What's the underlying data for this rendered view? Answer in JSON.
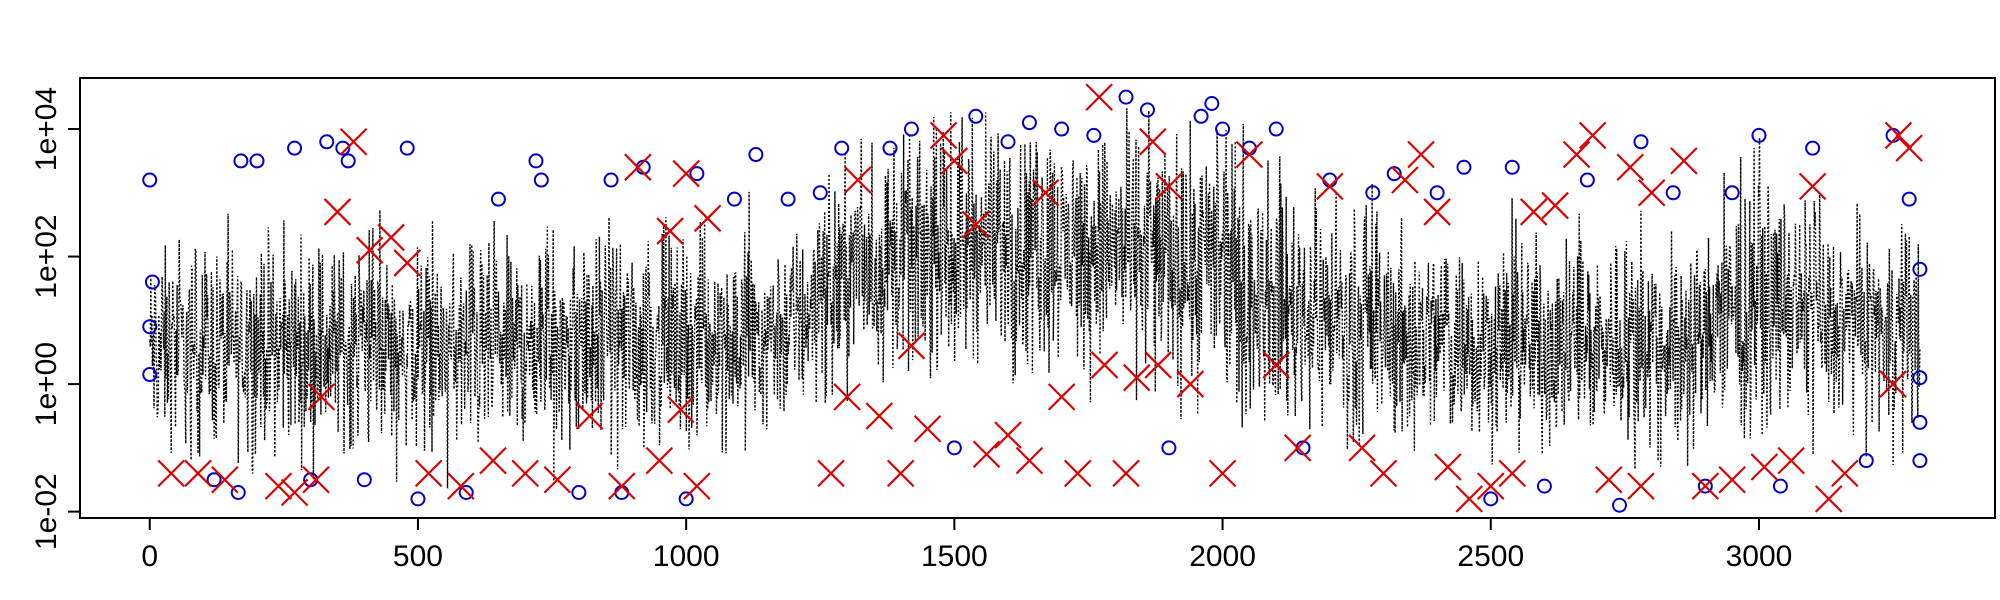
{
  "chart_data": {
    "type": "scatter",
    "title": "",
    "xlabel": "",
    "ylabel": "",
    "xlim": [
      -130,
      3440
    ],
    "ylim_log10": [
      -2.1,
      4.8
    ],
    "y_scale": "log",
    "grid": false,
    "legend": "none",
    "x_ticks": [
      0,
      500,
      1000,
      1500,
      2000,
      2500,
      3000
    ],
    "x_tick_labels": [
      "0",
      "500",
      "1000",
      "1500",
      "2000",
      "2500",
      "3000"
    ],
    "y_ticks_log10": [
      -2,
      0,
      2,
      4
    ],
    "y_tick_labels": [
      "1e-02",
      "1e+00",
      "1e+02",
      "1e+04"
    ],
    "colors": {
      "line": "#000000",
      "circle": "#0000cc",
      "cross": "#dd0000"
    },
    "series": [
      {
        "type": "line-dotted",
        "n_points": 3300,
        "x_range": [
          0,
          3300
        ],
        "envelope_log10": [
          {
            "x": 0,
            "low": -1.5,
            "high": 2.6
          },
          {
            "x": 200,
            "low": -1.6,
            "high": 2.8
          },
          {
            "x": 400,
            "low": -1.5,
            "high": 2.7
          },
          {
            "x": 600,
            "low": -1.6,
            "high": 2.6
          },
          {
            "x": 800,
            "low": -1.5,
            "high": 2.8
          },
          {
            "x": 1000,
            "low": -1.4,
            "high": 2.8
          },
          {
            "x": 1200,
            "low": -1.2,
            "high": 3.0
          },
          {
            "x": 1300,
            "low": -0.4,
            "high": 4.0
          },
          {
            "x": 1500,
            "low": -0.3,
            "high": 4.5
          },
          {
            "x": 1700,
            "low": -0.2,
            "high": 4.6
          },
          {
            "x": 1900,
            "low": -0.4,
            "high": 4.5
          },
          {
            "x": 2000,
            "low": -0.8,
            "high": 4.4
          },
          {
            "x": 2100,
            "low": -1.2,
            "high": 3.8
          },
          {
            "x": 2300,
            "low": -1.4,
            "high": 3.0
          },
          {
            "x": 2600,
            "low": -1.5,
            "high": 2.8
          },
          {
            "x": 2900,
            "low": -1.4,
            "high": 2.9
          },
          {
            "x": 3000,
            "low": -1.0,
            "high": 3.8
          },
          {
            "x": 3150,
            "low": -1.2,
            "high": 3.0
          },
          {
            "x": 3300,
            "low": -1.2,
            "high": 3.0
          }
        ]
      },
      {
        "type": "circles",
        "points_log10": [
          [
            0,
            3.2
          ],
          [
            0,
            0.15
          ],
          [
            0,
            0.9
          ],
          [
            5,
            1.6
          ],
          [
            120,
            -1.5
          ],
          [
            165,
            -1.7
          ],
          [
            170,
            3.5
          ],
          [
            200,
            3.5
          ],
          [
            270,
            3.7
          ],
          [
            300,
            -1.5
          ],
          [
            330,
            3.8
          ],
          [
            360,
            3.7
          ],
          [
            370,
            3.5
          ],
          [
            400,
            -1.5
          ],
          [
            480,
            3.7
          ],
          [
            500,
            -1.8
          ],
          [
            590,
            -1.7
          ],
          [
            650,
            2.9
          ],
          [
            720,
            3.5
          ],
          [
            730,
            3.2
          ],
          [
            800,
            -1.7
          ],
          [
            860,
            3.2
          ],
          [
            880,
            -1.7
          ],
          [
            920,
            3.4
          ],
          [
            1000,
            -1.8
          ],
          [
            1020,
            3.3
          ],
          [
            1090,
            2.9
          ],
          [
            1130,
            3.6
          ],
          [
            1190,
            2.9
          ],
          [
            1250,
            3.0
          ],
          [
            1290,
            3.7
          ],
          [
            1380,
            3.7
          ],
          [
            1420,
            4.0
          ],
          [
            1500,
            -1.0
          ],
          [
            1540,
            4.2
          ],
          [
            1600,
            3.8
          ],
          [
            1640,
            4.1
          ],
          [
            1700,
            4.0
          ],
          [
            1760,
            3.9
          ],
          [
            1820,
            4.5
          ],
          [
            1860,
            4.3
          ],
          [
            1900,
            -1.0
          ],
          [
            1960,
            4.2
          ],
          [
            1980,
            4.4
          ],
          [
            2000,
            4.0
          ],
          [
            2050,
            3.7
          ],
          [
            2100,
            4.0
          ],
          [
            2150,
            -1.0
          ],
          [
            2200,
            3.2
          ],
          [
            2280,
            3.0
          ],
          [
            2320,
            3.3
          ],
          [
            2400,
            3.0
          ],
          [
            2450,
            3.4
          ],
          [
            2500,
            -1.8
          ],
          [
            2540,
            3.4
          ],
          [
            2600,
            -1.6
          ],
          [
            2680,
            3.2
          ],
          [
            2740,
            -1.9
          ],
          [
            2780,
            3.8
          ],
          [
            2840,
            3.0
          ],
          [
            2900,
            -1.6
          ],
          [
            2950,
            3.0
          ],
          [
            3000,
            3.9
          ],
          [
            3040,
            -1.6
          ],
          [
            3100,
            3.7
          ],
          [
            3200,
            -1.2
          ],
          [
            3250,
            3.9
          ],
          [
            3280,
            2.9
          ],
          [
            3300,
            1.8
          ],
          [
            3300,
            0.1
          ],
          [
            3300,
            -0.6
          ],
          [
            3300,
            -1.2
          ]
        ]
      },
      {
        "type": "crosses",
        "points_log10": [
          [
            40,
            -1.4
          ],
          [
            90,
            -1.4
          ],
          [
            140,
            -1.5
          ],
          [
            240,
            -1.6
          ],
          [
            270,
            -1.7
          ],
          [
            310,
            -1.5
          ],
          [
            320,
            -0.2
          ],
          [
            350,
            2.7
          ],
          [
            380,
            3.8
          ],
          [
            410,
            2.1
          ],
          [
            450,
            2.3
          ],
          [
            480,
            1.9
          ],
          [
            520,
            -1.4
          ],
          [
            580,
            -1.6
          ],
          [
            640,
            -1.2
          ],
          [
            700,
            -1.4
          ],
          [
            760,
            -1.5
          ],
          [
            820,
            -0.5
          ],
          [
            880,
            -1.6
          ],
          [
            910,
            3.4
          ],
          [
            950,
            -1.2
          ],
          [
            970,
            2.4
          ],
          [
            990,
            -0.4
          ],
          [
            1000,
            3.3
          ],
          [
            1020,
            -1.6
          ],
          [
            1040,
            2.6
          ],
          [
            1270,
            -1.4
          ],
          [
            1300,
            -0.2
          ],
          [
            1320,
            3.2
          ],
          [
            1360,
            -0.5
          ],
          [
            1400,
            -1.4
          ],
          [
            1420,
            0.6
          ],
          [
            1450,
            -0.7
          ],
          [
            1480,
            3.9
          ],
          [
            1500,
            3.5
          ],
          [
            1540,
            2.5
          ],
          [
            1560,
            -1.1
          ],
          [
            1600,
            -0.8
          ],
          [
            1640,
            -1.2
          ],
          [
            1670,
            3.0
          ],
          [
            1700,
            -0.2
          ],
          [
            1730,
            -1.4
          ],
          [
            1770,
            4.5
          ],
          [
            1780,
            0.3
          ],
          [
            1820,
            -1.4
          ],
          [
            1840,
            0.1
          ],
          [
            1870,
            3.8
          ],
          [
            1880,
            0.3
          ],
          [
            1900,
            3.1
          ],
          [
            1940,
            0.0
          ],
          [
            2000,
            -1.4
          ],
          [
            2050,
            3.6
          ],
          [
            2100,
            0.3
          ],
          [
            2140,
            -1.0
          ],
          [
            2200,
            3.1
          ],
          [
            2260,
            -1.0
          ],
          [
            2300,
            -1.4
          ],
          [
            2340,
            3.2
          ],
          [
            2370,
            3.6
          ],
          [
            2400,
            2.7
          ],
          [
            2420,
            -1.3
          ],
          [
            2460,
            -1.8
          ],
          [
            2500,
            -1.6
          ],
          [
            2540,
            -1.4
          ],
          [
            2580,
            2.7
          ],
          [
            2620,
            2.8
          ],
          [
            2660,
            3.6
          ],
          [
            2690,
            3.9
          ],
          [
            2720,
            -1.5
          ],
          [
            2760,
            3.4
          ],
          [
            2780,
            -1.6
          ],
          [
            2800,
            3.0
          ],
          [
            2860,
            3.5
          ],
          [
            2900,
            -1.6
          ],
          [
            2950,
            -1.5
          ],
          [
            3010,
            -1.3
          ],
          [
            3060,
            -1.2
          ],
          [
            3100,
            3.1
          ],
          [
            3130,
            -1.8
          ],
          [
            3160,
            -1.4
          ],
          [
            3250,
            0.0
          ],
          [
            3260,
            3.9
          ],
          [
            3280,
            3.7
          ]
        ]
      }
    ]
  }
}
